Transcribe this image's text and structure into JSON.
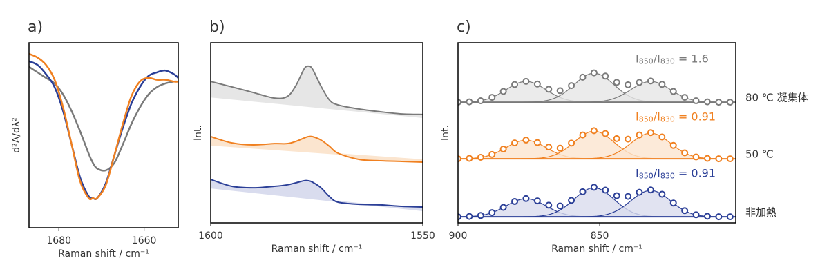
{
  "chart_data": [
    {
      "type": "line",
      "title": "a)",
      "xlabel": "Raman shift / cm⁻¹",
      "ylabel": "d²A/dλ²",
      "xlim": [
        1687,
        1652
      ],
      "xticks": [
        1680,
        1660
      ],
      "ylim": [
        0,
        1
      ],
      "x": [
        1687,
        1685,
        1683,
        1681,
        1679,
        1677,
        1675,
        1673,
        1672,
        1671,
        1669,
        1667,
        1665,
        1663,
        1661,
        1659,
        1657,
        1655,
        1653,
        1652
      ],
      "series": [
        {
          "color": "#7a7a7a",
          "values": [
            0.87,
            0.84,
            0.81,
            0.78,
            0.72,
            0.63,
            0.52,
            0.4,
            0.35,
            0.32,
            0.31,
            0.35,
            0.45,
            0.56,
            0.65,
            0.72,
            0.76,
            0.78,
            0.79,
            0.79
          ]
        },
        {
          "color": "#2b3f97",
          "values": [
            0.9,
            0.88,
            0.83,
            0.76,
            0.63,
            0.45,
            0.27,
            0.17,
            0.16,
            0.16,
            0.24,
            0.39,
            0.54,
            0.67,
            0.76,
            0.82,
            0.84,
            0.85,
            0.83,
            0.81
          ]
        },
        {
          "color": "#f08020",
          "values": [
            0.94,
            0.92,
            0.88,
            0.8,
            0.65,
            0.45,
            0.25,
            0.16,
            0.16,
            0.16,
            0.23,
            0.39,
            0.56,
            0.71,
            0.79,
            0.81,
            0.8,
            0.8,
            0.79,
            0.79
          ]
        }
      ]
    },
    {
      "type": "spectra",
      "title": "b)",
      "xlabel": "Raman shift / cm⁻¹",
      "ylabel": "Int.",
      "xlim": [
        1600,
        1550
      ],
      "xticks": [
        1600,
        1550
      ],
      "ylim": [
        0,
        1
      ],
      "x": [
        1600,
        1595,
        1590,
        1585,
        1582,
        1580,
        1578,
        1577,
        1576,
        1574,
        1572,
        1570,
        1565,
        1560,
        1555,
        1550
      ],
      "series": [
        {
          "color": "#7a7a7a",
          "fill": "#e6e6e6",
          "baseline": [
            0.7,
            0.586
          ],
          "values": [
            0.785,
            0.755,
            0.724,
            0.693,
            0.701,
            0.759,
            0.854,
            0.87,
            0.854,
            0.759,
            0.682,
            0.655,
            0.632,
            0.617,
            0.605,
            0.602
          ]
        },
        {
          "color": "#f08020",
          "fill": "#fbe5cf",
          "baseline": [
            0.433,
            0.349
          ],
          "values": [
            0.479,
            0.444,
            0.433,
            0.44,
            0.44,
            0.452,
            0.471,
            0.479,
            0.479,
            0.46,
            0.425,
            0.387,
            0.352,
            0.345,
            0.341,
            0.337
          ]
        },
        {
          "color": "#2b3f97",
          "fill": "#d9dcee",
          "baseline": [
            0.195,
            0.069
          ],
          "values": [
            0.241,
            0.203,
            0.195,
            0.203,
            0.211,
            0.222,
            0.234,
            0.234,
            0.226,
            0.195,
            0.146,
            0.115,
            0.103,
            0.1,
            0.092,
            0.088
          ]
        }
      ]
    },
    {
      "type": "peak_fit",
      "title": "c)",
      "xlabel": "Raman shift / cm⁻¹",
      "ylabel": "Int.",
      "xlim": [
        900,
        802
      ],
      "xticks": [
        900,
        850
      ],
      "ylim": [
        0,
        1
      ],
      "peak_width": 7,
      "x": [
        900,
        896,
        892,
        888,
        884,
        880,
        876,
        872,
        868,
        864,
        860,
        856,
        852,
        848,
        844,
        840,
        836,
        832,
        828,
        824,
        820,
        816,
        812,
        808,
        804
      ],
      "series": [
        {
          "name": "80 ℃ 凝集体",
          "color": "#7a7a7a",
          "fill": "#e6e6e6",
          "baseline": 0.67,
          "label_parts": [
            "I",
            "850",
            "/I",
            "830",
            " = 1.6"
          ],
          "peaks": [
            {
              "center": 876,
              "amplitude": 0.115
            },
            {
              "center": 852,
              "amplitude": 0.161
            },
            {
              "center": 832,
              "amplitude": 0.115
            }
          ],
          "values": [
            0.67,
            0.672,
            0.678,
            0.697,
            0.73,
            0.768,
            0.786,
            0.771,
            0.742,
            0.734,
            0.762,
            0.809,
            0.833,
            0.815,
            0.78,
            0.767,
            0.78,
            0.788,
            0.769,
            0.73,
            0.697,
            0.678,
            0.672,
            0.67,
            0.67
          ]
        },
        {
          "name": "50 ℃",
          "color": "#f08020",
          "fill": "#fbe5cf",
          "baseline": 0.356,
          "label_parts": [
            "I",
            "850",
            "/I",
            "830",
            " = 0.91"
          ],
          "peaks": [
            {
              "center": 876,
              "amplitude": 0.103
            },
            {
              "center": 852,
              "amplitude": 0.153
            },
            {
              "center": 832,
              "amplitude": 0.142
            }
          ],
          "values": [
            0.356,
            0.358,
            0.364,
            0.38,
            0.41,
            0.444,
            0.46,
            0.446,
            0.421,
            0.415,
            0.443,
            0.488,
            0.512,
            0.496,
            0.468,
            0.465,
            0.488,
            0.501,
            0.477,
            0.43,
            0.389,
            0.366,
            0.358,
            0.356,
            0.356
          ]
        },
        {
          "name": "非加熱",
          "color": "#2b3f97",
          "fill": "#d9dcee",
          "baseline": 0.034,
          "label_parts": [
            "I",
            "850",
            "/I",
            "830",
            " = 0.91"
          ],
          "peaks": [
            {
              "center": 876,
              "amplitude": 0.1
            },
            {
              "center": 852,
              "amplitude": 0.161
            },
            {
              "center": 832,
              "amplitude": 0.146
            }
          ],
          "values": [
            0.034,
            0.036,
            0.041,
            0.057,
            0.086,
            0.119,
            0.135,
            0.122,
            0.098,
            0.094,
            0.125,
            0.173,
            0.198,
            0.182,
            0.151,
            0.147,
            0.17,
            0.183,
            0.159,
            0.11,
            0.068,
            0.045,
            0.037,
            0.034,
            0.034
          ]
        }
      ]
    }
  ]
}
